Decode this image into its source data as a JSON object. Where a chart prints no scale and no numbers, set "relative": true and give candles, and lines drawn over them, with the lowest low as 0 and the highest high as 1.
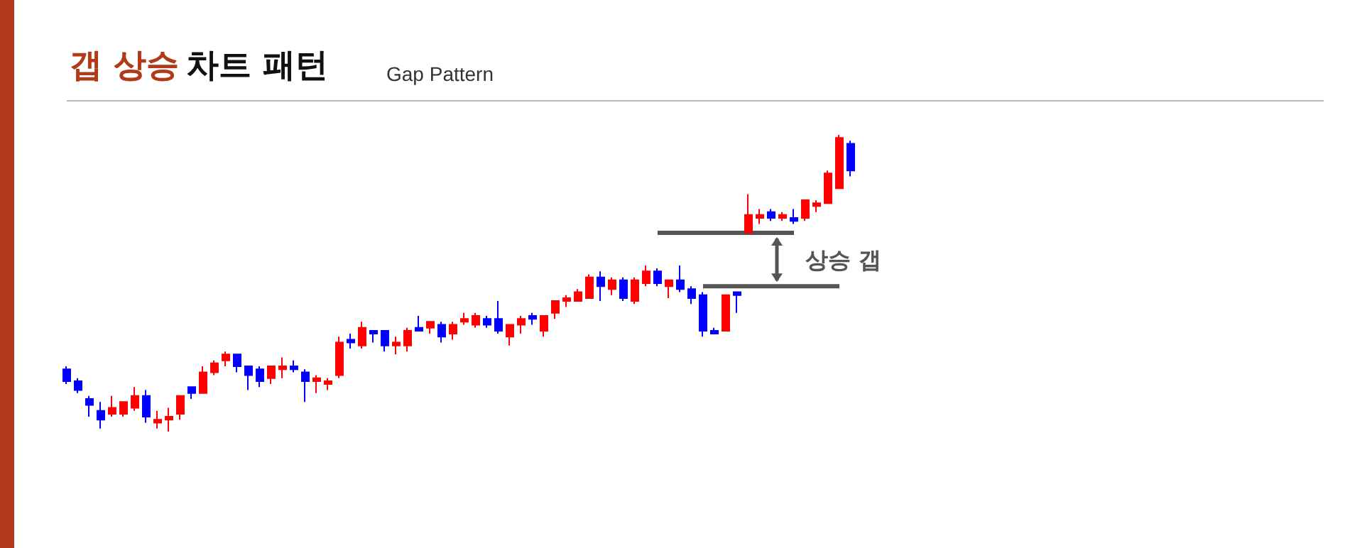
{
  "chart_data": {
    "type": "candlestick",
    "title": "갭 상승 차트 패턴",
    "subtitle": "Gap Pattern",
    "relative": true,
    "annotations": [
      "상승 갭"
    ],
    "categories": [
      null,
      null,
      null,
      null,
      null,
      null,
      null,
      null,
      null,
      null,
      null,
      null,
      null,
      null,
      null,
      null,
      null,
      null,
      null,
      null,
      null,
      null,
      null,
      null,
      null,
      null,
      null,
      null,
      null,
      null,
      null,
      null,
      null,
      null,
      null,
      null,
      null,
      null,
      null,
      null,
      null,
      null,
      null,
      null,
      null,
      null,
      null,
      null,
      null,
      null,
      null,
      null,
      null,
      null,
      null,
      null,
      null,
      null,
      null,
      null,
      null,
      null,
      null,
      null,
      null,
      null,
      null,
      null,
      null,
      null
    ],
    "ohlc": [
      [
        0.21,
        0.22,
        0.16,
        0.17
      ],
      [
        0.17,
        0.18,
        0.13,
        0.14
      ],
      [
        0.11,
        0.12,
        0.05,
        0.09
      ],
      [
        0.07,
        0.1,
        0.01,
        0.04
      ],
      [
        0.06,
        0.12,
        0.05,
        0.08
      ],
      [
        0.06,
        0.1,
        0.05,
        0.1
      ],
      [
        0.08,
        0.15,
        0.07,
        0.12
      ],
      [
        0.12,
        0.14,
        0.03,
        0.05
      ],
      [
        0.03,
        0.07,
        0.01,
        0.04
      ],
      [
        0.04,
        0.08,
        0.0,
        0.05
      ],
      [
        0.06,
        0.12,
        0.04,
        0.12
      ],
      [
        0.15,
        0.15,
        0.11,
        0.13
      ],
      [
        0.13,
        0.22,
        0.13,
        0.2
      ],
      [
        0.2,
        0.24,
        0.19,
        0.23
      ],
      [
        0.24,
        0.27,
        0.22,
        0.26
      ],
      [
        0.26,
        0.26,
        0.2,
        0.22
      ],
      [
        0.22,
        0.22,
        0.14,
        0.19
      ],
      [
        0.21,
        0.22,
        0.15,
        0.17
      ],
      [
        0.18,
        0.22,
        0.16,
        0.22
      ],
      [
        0.21,
        0.25,
        0.18,
        0.22
      ],
      [
        0.22,
        0.24,
        0.2,
        0.21
      ],
      [
        0.2,
        0.21,
        0.1,
        0.17
      ],
      [
        0.17,
        0.19,
        0.13,
        0.18
      ],
      [
        0.16,
        0.18,
        0.14,
        0.17
      ],
      [
        0.19,
        0.32,
        0.18,
        0.3
      ],
      [
        0.31,
        0.33,
        0.28,
        0.3
      ],
      [
        0.29,
        0.37,
        0.28,
        0.35
      ],
      [
        0.34,
        0.34,
        0.3,
        0.33
      ],
      [
        0.34,
        0.34,
        0.27,
        0.29
      ],
      [
        0.29,
        0.32,
        0.26,
        0.3
      ],
      [
        0.29,
        0.35,
        0.27,
        0.34
      ],
      [
        0.35,
        0.39,
        0.34,
        0.34
      ],
      [
        0.35,
        0.37,
        0.33,
        0.37
      ],
      [
        0.36,
        0.37,
        0.3,
        0.32
      ],
      [
        0.33,
        0.37,
        0.31,
        0.36
      ],
      [
        0.37,
        0.4,
        0.36,
        0.38
      ],
      [
        0.36,
        0.4,
        0.35,
        0.39
      ],
      [
        0.38,
        0.39,
        0.35,
        0.36
      ],
      [
        0.38,
        0.44,
        0.33,
        0.34
      ],
      [
        0.32,
        0.36,
        0.29,
        0.36
      ],
      [
        0.36,
        0.39,
        0.33,
        0.38
      ],
      [
        0.39,
        0.4,
        0.36,
        0.38
      ],
      [
        0.34,
        0.39,
        0.32,
        0.39
      ],
      [
        0.4,
        0.44,
        0.38,
        0.44
      ],
      [
        0.44,
        0.46,
        0.42,
        0.45
      ],
      [
        0.44,
        0.48,
        0.44,
        0.47
      ],
      [
        0.45,
        0.53,
        0.45,
        0.52
      ],
      [
        0.52,
        0.54,
        0.44,
        0.49
      ],
      [
        0.48,
        0.52,
        0.46,
        0.51
      ],
      [
        0.51,
        0.52,
        0.44,
        0.45
      ],
      [
        0.44,
        0.52,
        0.43,
        0.51
      ],
      [
        0.5,
        0.56,
        0.49,
        0.54
      ],
      [
        0.54,
        0.55,
        0.49,
        0.5
      ],
      [
        0.49,
        0.51,
        0.45,
        0.51
      ],
      [
        0.51,
        0.56,
        0.47,
        0.48
      ],
      [
        0.48,
        0.49,
        0.43,
        0.45
      ],
      [
        0.46,
        0.47,
        0.32,
        0.34
      ],
      [
        0.34,
        0.35,
        0.33,
        0.33
      ],
      [
        0.34,
        0.46,
        0.34,
        0.46
      ],
      [
        0.47,
        0.47,
        0.4,
        0.46
      ],
      [
        0.67,
        0.8,
        0.67,
        0.73
      ],
      [
        0.72,
        0.75,
        0.7,
        0.73
      ],
      [
        0.74,
        0.75,
        0.71,
        0.72
      ],
      [
        0.72,
        0.74,
        0.71,
        0.73
      ],
      [
        0.72,
        0.75,
        0.7,
        0.71
      ],
      [
        0.72,
        0.78,
        0.71,
        0.78
      ],
      [
        0.76,
        0.78,
        0.74,
        0.77
      ],
      [
        0.77,
        0.88,
        0.77,
        0.87
      ],
      [
        0.82,
        1.0,
        0.82,
        0.99
      ],
      [
        0.97,
        0.98,
        0.86,
        0.88
      ]
    ],
    "colors": [
      "#0000ff",
      "#0000ff",
      "#0000ff",
      "#0000ff",
      "#ff0000",
      "#ff0000",
      "#ff0000",
      "#0000ff",
      "#ff0000",
      "#ff0000",
      "#ff0000",
      "#0000ff",
      "#ff0000",
      "#ff0000",
      "#ff0000",
      "#0000ff",
      "#0000ff",
      "#0000ff",
      "#ff0000",
      "#ff0000",
      "#0000ff",
      "#0000ff",
      "#ff0000",
      "#ff0000",
      "#ff0000",
      "#0000ff",
      "#ff0000",
      "#0000ff",
      "#0000ff",
      "#ff0000",
      "#ff0000",
      "#0000ff",
      "#ff0000",
      "#0000ff",
      "#ff0000",
      "#ff0000",
      "#ff0000",
      "#0000ff",
      "#0000ff",
      "#ff0000",
      "#ff0000",
      "#0000ff",
      "#ff0000",
      "#ff0000",
      "#ff0000",
      "#ff0000",
      "#ff0000",
      "#0000ff",
      "#ff0000",
      "#0000ff",
      "#ff0000",
      "#ff0000",
      "#0000ff",
      "#ff0000",
      "#0000ff",
      "#0000ff",
      "#0000ff",
      "#0000ff",
      "#ff0000",
      "#0000ff",
      "#ff0000",
      "#ff0000",
      "#0000ff",
      "#ff0000",
      "#0000ff",
      "#ff0000",
      "#ff0000",
      "#ff0000",
      "#ff0000",
      "#0000ff"
    ],
    "ref_lines": [
      {
        "axis": "y",
        "value": 0.67,
        "color": "#555555"
      },
      {
        "axis": "y",
        "value": 0.49,
        "color": "#555555"
      }
    ]
  }
}
